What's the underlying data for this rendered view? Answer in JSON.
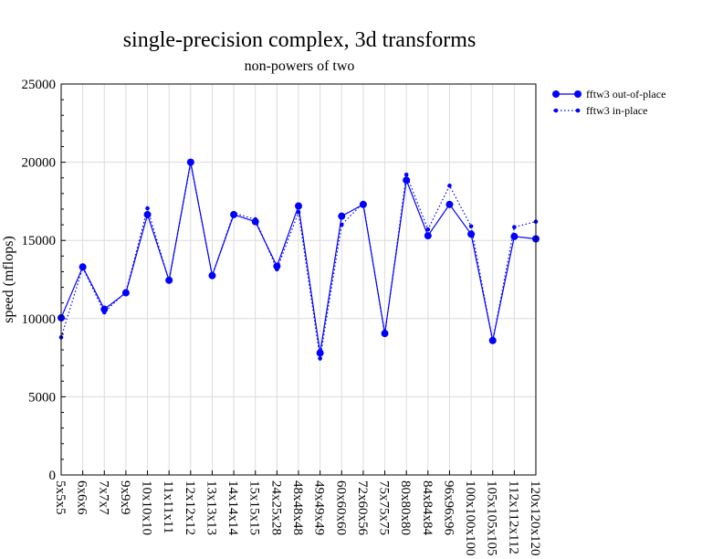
{
  "chart_data": {
    "type": "line",
    "title": "single-precision complex, 3d transforms",
    "subtitle": "non-powers of two",
    "xlabel": "",
    "ylabel": "speed (mflops)",
    "ylim": [
      0,
      25000
    ],
    "yticks": [
      0,
      5000,
      10000,
      15000,
      20000,
      25000
    ],
    "grid": true,
    "legend_position": "top-right, outside plot",
    "categories": [
      "5x5x5",
      "6x6x6",
      "7x7x7",
      "9x9x9",
      "10x10x10",
      "11x11x11",
      "12x12x12",
      "13x13x13",
      "14x14x14",
      "15x15x15",
      "24x25x28",
      "48x48x48",
      "49x49x49",
      "60x60x60",
      "72x60x56",
      "75x75x75",
      "80x80x80",
      "84x84x84",
      "96x96x96",
      "100x100x100",
      "105x105x105",
      "112x112x112",
      "120x120x120"
    ],
    "series": [
      {
        "name": "fftw3 out-of-place",
        "color": "#0000ff",
        "style": "solid",
        "marker": "large-dot",
        "values": [
          10050,
          13300,
          10600,
          11650,
          16650,
          12450,
          20000,
          12750,
          16650,
          16200,
          13350,
          17200,
          7800,
          16550,
          17300,
          9050,
          18850,
          15300,
          17300,
          15400,
          8600,
          15250,
          15100
        ]
      },
      {
        "name": "fftw3 in-place",
        "color": "#0000ff",
        "style": "dotted",
        "marker": "small-dot",
        "values": [
          8800,
          13250,
          10400,
          11700,
          17050,
          12400,
          19950,
          12750,
          16750,
          16350,
          13150,
          16800,
          7450,
          16000,
          17400,
          8950,
          19200,
          15700,
          18500,
          15900,
          8550,
          15850,
          16200
        ]
      }
    ]
  }
}
